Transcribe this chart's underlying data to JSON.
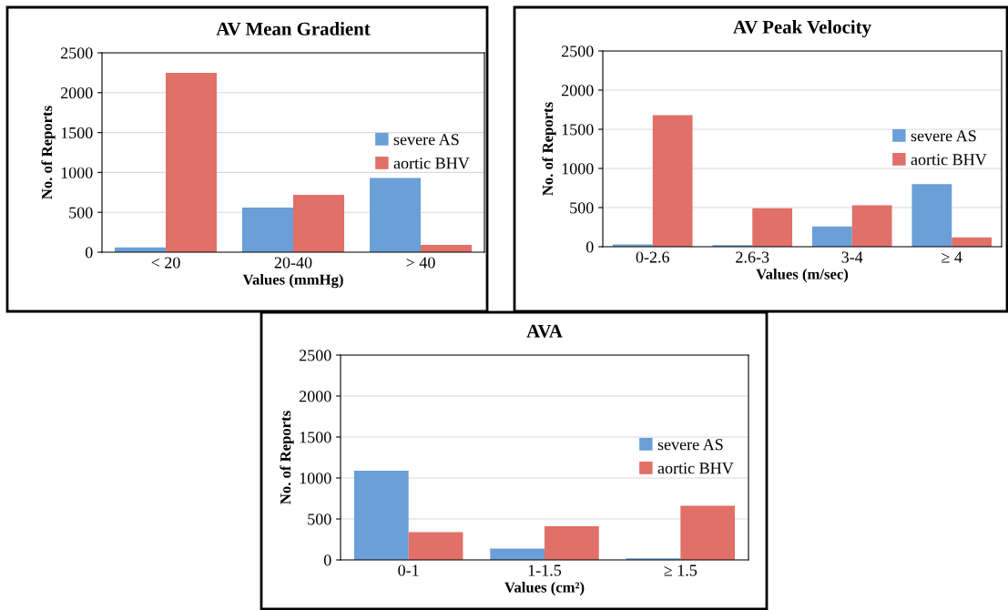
{
  "chart_data": [
    {
      "type": "bar",
      "title": "AV Mean Gradient",
      "xlabel": "Values (mmHg)",
      "ylabel": "No. of Reports",
      "categories": [
        "< 20",
        "20-40",
        "> 40"
      ],
      "series": [
        {
          "name": "severe AS",
          "color": "#6a9fd8",
          "values": [
            60,
            560,
            930
          ]
        },
        {
          "name": "aortic BHV",
          "color": "#e07068",
          "values": [
            2250,
            720,
            90
          ]
        }
      ],
      "ylim": [
        0,
        2500
      ],
      "yticks": [
        0,
        500,
        1000,
        1500,
        2000,
        2500
      ],
      "grid": "y",
      "legend": "right"
    },
    {
      "type": "bar",
      "title": "AV Peak Velocity",
      "xlabel": "Values (m/sec)",
      "ylabel": "No. of Reports",
      "categories": [
        "0-2.6",
        "2.6-3",
        "3-4",
        "≥ 4"
      ],
      "series": [
        {
          "name": "severe AS",
          "color": "#6a9fd8",
          "values": [
            30,
            20,
            260,
            800
          ]
        },
        {
          "name": "aortic BHV",
          "color": "#e07068",
          "values": [
            1680,
            490,
            530,
            120
          ]
        }
      ],
      "ylim": [
        0,
        2500
      ],
      "yticks": [
        0,
        500,
        1000,
        1500,
        2000,
        2500
      ],
      "grid": "y",
      "legend": "right"
    },
    {
      "type": "bar",
      "title": "AVA",
      "xlabel": "Values (cm²)",
      "ylabel": "No. of Reports",
      "categories": [
        "0-1",
        "1-1.5",
        "≥ 1.5"
      ],
      "series": [
        {
          "name": "severe AS",
          "color": "#6a9fd8",
          "values": [
            1090,
            140,
            20
          ]
        },
        {
          "name": "aortic BHV",
          "color": "#e07068",
          "values": [
            340,
            410,
            660
          ]
        }
      ],
      "ylim": [
        0,
        2500
      ],
      "yticks": [
        0,
        500,
        1000,
        1500,
        2000,
        2500
      ],
      "grid": "y",
      "legend": "right"
    }
  ]
}
